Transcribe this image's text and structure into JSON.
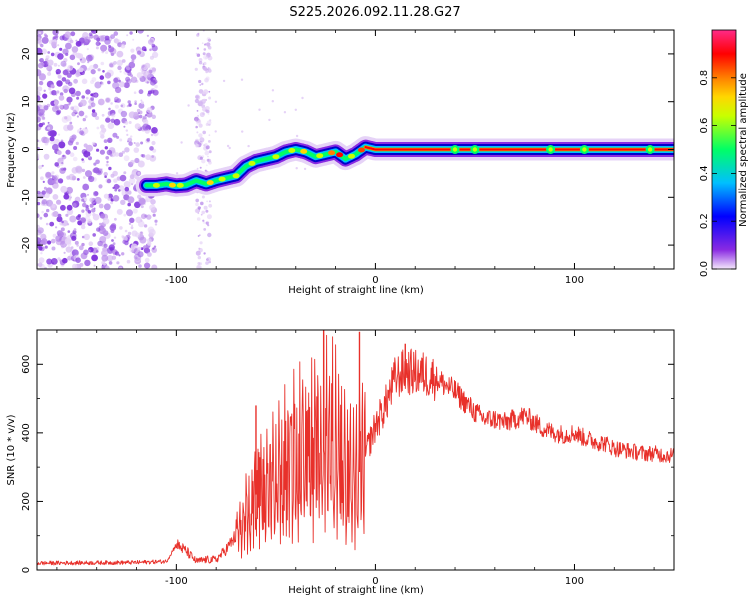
{
  "title": "S225.2026.092.11.28.G27",
  "chart_data": [
    {
      "type": "heatmap",
      "name": "spectrogram",
      "xlabel": "Height of straight line (km)",
      "ylabel": "Frequency (Hz)",
      "xlim": [
        -170,
        150
      ],
      "ylim": [
        -25,
        25
      ],
      "xticks": [
        -100,
        0,
        100
      ],
      "xtick_labels": [
        "-100",
        "0",
        "100"
      ],
      "yticks": [
        -20,
        -10,
        0,
        10,
        20
      ],
      "ytick_labels": [
        "-20",
        "-10",
        "0",
        "10",
        "20"
      ],
      "trace": {
        "x": [
          -115,
          -110,
          -105,
          -100,
          -95,
          -90,
          -85,
          -80,
          -75,
          -70,
          -65,
          -60,
          -55,
          -50,
          -45,
          -40,
          -35,
          -30,
          -25,
          -20,
          -15,
          -10,
          -5,
          0,
          150
        ],
        "y": [
          -7.5,
          -7.5,
          -7.2,
          -7.6,
          -7.4,
          -6.5,
          -7.2,
          -6.5,
          -6.0,
          -5.5,
          -3.5,
          -2.5,
          -2.0,
          -1.5,
          -0.5,
          0.0,
          -0.5,
          -1.5,
          -1.0,
          -0.5,
          -2.0,
          -1.0,
          0.5,
          0.0,
          0.0
        ]
      },
      "colorbar": {
        "label": "Normalized spectral amplitude",
        "range": [
          0,
          1
        ],
        "ticks": [
          0.0,
          0.2,
          0.4,
          0.6,
          0.8
        ],
        "tick_labels": [
          "0.0",
          "0.2",
          "0.4",
          "0.6",
          "0.8"
        ],
        "colors": [
          "#f4e8fb",
          "#8a2be2",
          "#0000ff",
          "#00bfff",
          "#00ff66",
          "#c8ff00",
          "#ffd700",
          "#ff8000",
          "#ff0000",
          "#ff2a88"
        ]
      }
    },
    {
      "type": "line",
      "name": "snr",
      "xlabel": "Height of straight line (km)",
      "ylabel": "SNR (10 * v/v)",
      "xlim": [
        -170,
        150
      ],
      "ylim": [
        0,
        700
      ],
      "xticks": [
        -100,
        0,
        100
      ],
      "xtick_labels": [
        "-100",
        "0",
        "100"
      ],
      "yticks": [
        0,
        200,
        400,
        600
      ],
      "ytick_labels": [
        "0",
        "200",
        "400",
        "600"
      ],
      "color": "#e8302a",
      "envelope": {
        "x": [
          -170,
          -120,
          -105,
          -100,
          -95,
          -90,
          -85,
          -80,
          -75,
          -70,
          -65,
          -60,
          -55,
          -50,
          -45,
          -40,
          -35,
          -30,
          -25,
          -20,
          -15,
          -10,
          -5,
          0,
          5,
          10,
          15,
          20,
          25,
          30,
          35,
          40,
          45,
          50,
          55,
          60,
          65,
          70,
          75,
          80,
          85,
          90,
          95,
          100,
          105,
          110,
          115,
          120,
          125,
          130,
          135,
          140,
          145,
          150
        ],
        "y": [
          20,
          22,
          25,
          75,
          55,
          25,
          30,
          30,
          60,
          100,
          150,
          220,
          230,
          260,
          300,
          320,
          340,
          330,
          380,
          370,
          280,
          250,
          340,
          420,
          480,
          560,
          580,
          575,
          570,
          560,
          540,
          520,
          490,
          460,
          440,
          440,
          430,
          440,
          450,
          430,
          410,
          400,
          395,
          400,
          385,
          375,
          370,
          355,
          350,
          345,
          340,
          340,
          335,
          335
        ]
      },
      "annotations": [
        {
          "x": -60,
          "y": 480
        },
        {
          "x": -26,
          "y": 700
        },
        {
          "x": -8,
          "y": 695
        },
        {
          "x": 15,
          "y": 660
        }
      ]
    }
  ]
}
